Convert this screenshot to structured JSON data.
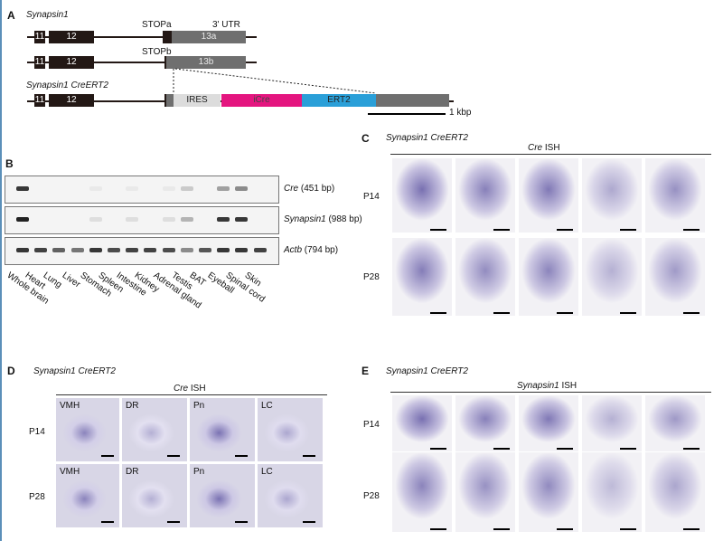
{
  "panelA": {
    "label": "A",
    "title1": "Synapsin1",
    "title2": "Synapsin1 CreERT2",
    "stopa": "STOPa",
    "stopb": "STOPb",
    "utr": "3' UTR",
    "ex11": "11",
    "ex12": "12",
    "ex13a": "13a",
    "ex13b": "13b",
    "ires": "IRES",
    "icre": "iCre",
    "ert2": "ERT2",
    "scale": "1 kbp",
    "colors": {
      "icre": "#e4157f",
      "ert2": "#2a9fd8",
      "ires": "#dcdcdc",
      "exon": "#231815",
      "utr": "#6f6f6f"
    }
  },
  "panelB": {
    "label": "B",
    "lanes": [
      "Whole brain",
      "Heart",
      "Lung",
      "Liver",
      "Stomach",
      "Spleen",
      "Intestine",
      "Kidney",
      "Adrenal gland",
      "Testis",
      "BAT",
      "Eyeball",
      "Spinal cord",
      "Skin"
    ],
    "gels": [
      {
        "gene": "Cre",
        "size": " (451 bp)",
        "intensity": [
          0.9,
          0,
          0,
          0,
          0.05,
          0,
          0.05,
          0,
          0.05,
          0.2,
          0,
          0.4,
          0.5,
          0
        ]
      },
      {
        "gene": "Synapsin1",
        "size": " (988 bp)",
        "intensity": [
          1,
          0,
          0,
          0,
          0.1,
          0,
          0.1,
          0,
          0.1,
          0.3,
          0,
          0.9,
          0.9,
          0
        ]
      },
      {
        "gene": "Actb",
        "size": " (794 bp)",
        "intensity": [
          0.9,
          0.85,
          0.7,
          0.6,
          0.9,
          0.8,
          0.85,
          0.85,
          0.8,
          0.5,
          0.75,
          0.9,
          0.9,
          0.85
        ]
      }
    ]
  },
  "panelC": {
    "label": "C",
    "title": "Synapsin1 CreERT2",
    "probe_it": "Cre",
    "probe_rest": " ISH",
    "rows": [
      "P14",
      "P28"
    ]
  },
  "panelD": {
    "label": "D",
    "title": "Synapsin1 CreERT2",
    "probe_it": "Cre",
    "probe_rest": " ISH",
    "rows": [
      "P14",
      "P28"
    ],
    "regions": [
      "VMH",
      "DR",
      "Pn",
      "LC"
    ]
  },
  "panelE": {
    "label": "E",
    "title": "Synapsin1 CreERT2",
    "probe_it": "Synapsin1",
    "probe_rest": " ISH",
    "rows": [
      "P14",
      "P28"
    ]
  }
}
